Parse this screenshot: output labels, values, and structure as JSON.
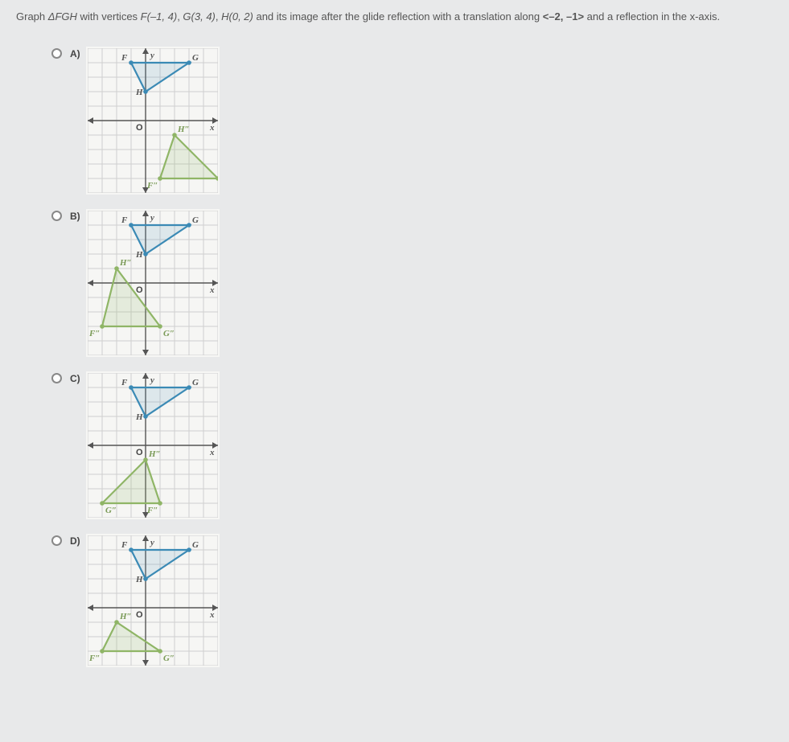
{
  "question": {
    "prefix": "Graph ",
    "tri": "ΔFGH",
    "mid": " with vertices ",
    "F": "F(–1, 4)",
    "G": "G(3, 4)",
    "H": "H(0, 2)",
    "after": " and its image after the glide reflection with a translation along ",
    "vec": "<–2, –1>",
    "tail": " and a reflection in the x-axis."
  },
  "labels": {
    "A": "A)",
    "B": "B)",
    "C": "C)",
    "D": "D)",
    "y": "y",
    "x": "x",
    "O": "O",
    "F": "F",
    "G": "G",
    "H": "H",
    "Fpp": "F″",
    "Gpp": "G″",
    "Hpp": "H″"
  },
  "style": {
    "cell": 18,
    "xmin": -4,
    "xmax": 5,
    "ymin": -5,
    "ymax": 5,
    "blue": "#3b8ab5",
    "green": "#8fb566",
    "grid": "#cfcfcf",
    "bg": "#f6f6f4"
  },
  "original": {
    "F": [
      -1,
      4
    ],
    "G": [
      3,
      4
    ],
    "H": [
      0,
      2
    ]
  },
  "options": {
    "A": {
      "Fpp": [
        1,
        -4
      ],
      "Gpp": [
        5,
        -4
      ],
      "Hpp": [
        2,
        -1
      ]
    },
    "B": {
      "Fpp": [
        -3,
        -3
      ],
      "Gpp": [
        1,
        -3
      ],
      "Hpp": [
        -2,
        1
      ]
    },
    "C": {
      "Fpp": [
        1,
        -4
      ],
      "Gpp": [
        -3,
        -4
      ],
      "Hpp": [
        0,
        -1
      ]
    },
    "D": {
      "Fpp": [
        -3,
        -3
      ],
      "Gpp": [
        1,
        -3
      ],
      "Hpp": [
        -2,
        -1
      ]
    }
  },
  "optD_ymin": -4
}
